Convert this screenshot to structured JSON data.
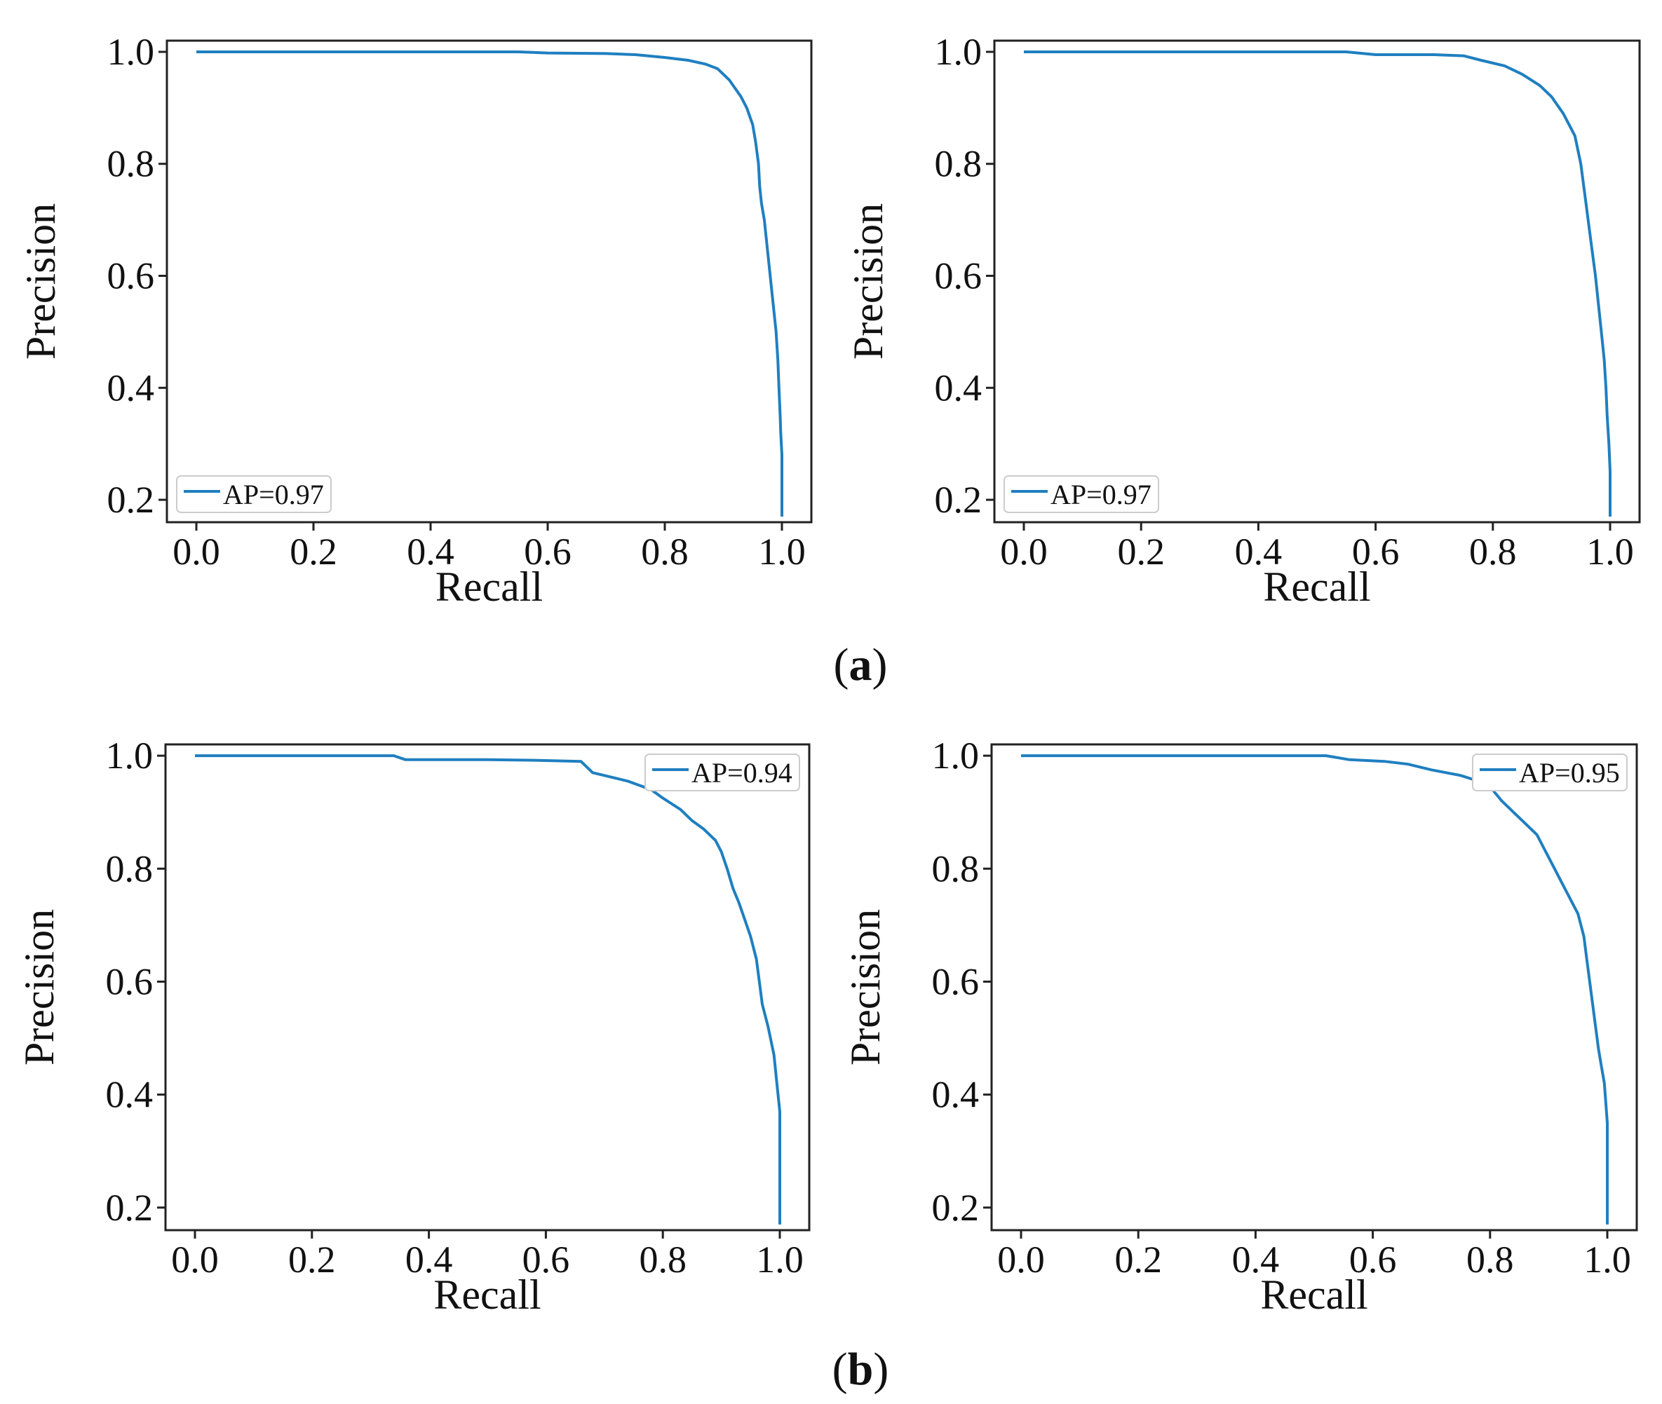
{
  "colors": {
    "curve": "#1f7fc0"
  },
  "captions": [
    {
      "letter": "a"
    },
    {
      "letter": "b"
    }
  ],
  "chart_data": [
    {
      "type": "line",
      "xlabel": "Recall",
      "ylabel": "Precision",
      "xlim": [
        0.0,
        1.0
      ],
      "ylim": [
        0.16,
        1.02
      ],
      "xticks": [
        "0.0",
        "0.2",
        "0.4",
        "0.6",
        "0.8",
        "1.0"
      ],
      "yticks": [
        "0.2",
        "0.4",
        "0.6",
        "0.8",
        "1.0"
      ],
      "legend": "lower-left",
      "grid": false,
      "series": [
        {
          "name": "AP=0.97",
          "x": [
            0.0,
            0.55,
            0.6,
            0.7,
            0.75,
            0.8,
            0.84,
            0.87,
            0.89,
            0.9,
            0.91,
            0.92,
            0.93,
            0.94,
            0.95,
            0.955,
            0.96,
            0.962,
            0.965,
            0.97,
            0.975,
            0.98,
            0.985,
            0.99,
            0.993,
            0.995,
            0.997,
            0.998,
            1.0,
            1.0
          ],
          "y": [
            1.0,
            1.0,
            0.998,
            0.997,
            0.995,
            0.99,
            0.985,
            0.978,
            0.97,
            0.96,
            0.95,
            0.935,
            0.92,
            0.9,
            0.87,
            0.84,
            0.8,
            0.76,
            0.73,
            0.7,
            0.65,
            0.6,
            0.55,
            0.5,
            0.45,
            0.4,
            0.35,
            0.32,
            0.28,
            0.17
          ]
        }
      ]
    },
    {
      "type": "line",
      "xlabel": "Recall",
      "ylabel": "Precision",
      "xlim": [
        0.0,
        1.0
      ],
      "ylim": [
        0.16,
        1.02
      ],
      "xticks": [
        "0.0",
        "0.2",
        "0.4",
        "0.6",
        "0.8",
        "1.0"
      ],
      "yticks": [
        "0.2",
        "0.4",
        "0.6",
        "0.8",
        "1.0"
      ],
      "legend": "lower-left",
      "grid": false,
      "series": [
        {
          "name": "AP=0.97",
          "x": [
            0.0,
            0.55,
            0.6,
            0.7,
            0.75,
            0.78,
            0.82,
            0.85,
            0.88,
            0.9,
            0.92,
            0.93,
            0.94,
            0.95,
            0.955,
            0.96,
            0.965,
            0.97,
            0.975,
            0.98,
            0.985,
            0.99,
            0.993,
            0.995,
            0.998,
            1.0,
            1.0
          ],
          "y": [
            1.0,
            1.0,
            0.995,
            0.995,
            0.993,
            0.985,
            0.975,
            0.96,
            0.94,
            0.92,
            0.89,
            0.87,
            0.85,
            0.8,
            0.76,
            0.72,
            0.68,
            0.64,
            0.6,
            0.55,
            0.5,
            0.45,
            0.4,
            0.35,
            0.3,
            0.25,
            0.17
          ]
        }
      ]
    },
    {
      "type": "line",
      "xlabel": "Recall",
      "ylabel": "Precision",
      "xlim": [
        0.0,
        1.0
      ],
      "ylim": [
        0.16,
        1.02
      ],
      "xticks": [
        "0.0",
        "0.2",
        "0.4",
        "0.6",
        "0.8",
        "1.0"
      ],
      "yticks": [
        "0.2",
        "0.4",
        "0.6",
        "0.8",
        "1.0"
      ],
      "legend": "upper-right",
      "grid": false,
      "series": [
        {
          "name": "AP=0.94",
          "x": [
            0.0,
            0.34,
            0.36,
            0.5,
            0.58,
            0.66,
            0.68,
            0.7,
            0.72,
            0.74,
            0.78,
            0.8,
            0.83,
            0.85,
            0.87,
            0.89,
            0.9,
            0.91,
            0.92,
            0.93,
            0.94,
            0.95,
            0.96,
            0.965,
            0.97,
            0.98,
            0.99,
            0.995,
            1.0,
            1.0
          ],
          "y": [
            1.0,
            1.0,
            0.993,
            0.993,
            0.992,
            0.99,
            0.97,
            0.965,
            0.96,
            0.955,
            0.94,
            0.925,
            0.905,
            0.885,
            0.87,
            0.85,
            0.83,
            0.8,
            0.765,
            0.74,
            0.71,
            0.68,
            0.64,
            0.6,
            0.56,
            0.52,
            0.47,
            0.42,
            0.37,
            0.17
          ]
        }
      ]
    },
    {
      "type": "line",
      "xlabel": "Recall",
      "ylabel": "Precision",
      "xlim": [
        0.0,
        1.0
      ],
      "ylim": [
        0.16,
        1.02
      ],
      "xticks": [
        "0.0",
        "0.2",
        "0.4",
        "0.6",
        "0.8",
        "1.0"
      ],
      "yticks": [
        "0.2",
        "0.4",
        "0.6",
        "0.8",
        "1.0"
      ],
      "legend": "upper-right",
      "grid": false,
      "series": [
        {
          "name": "AP=0.95",
          "x": [
            0.0,
            0.52,
            0.56,
            0.62,
            0.66,
            0.7,
            0.75,
            0.78,
            0.8,
            0.82,
            0.84,
            0.86,
            0.88,
            0.89,
            0.9,
            0.91,
            0.92,
            0.93,
            0.94,
            0.95,
            0.96,
            0.965,
            0.97,
            0.975,
            0.98,
            0.985,
            0.99,
            0.995,
            1.0,
            1.0
          ],
          "y": [
            1.0,
            1.0,
            0.993,
            0.99,
            0.985,
            0.975,
            0.965,
            0.955,
            0.945,
            0.92,
            0.9,
            0.88,
            0.86,
            0.84,
            0.82,
            0.8,
            0.78,
            0.76,
            0.74,
            0.72,
            0.68,
            0.64,
            0.6,
            0.56,
            0.52,
            0.48,
            0.45,
            0.42,
            0.35,
            0.17
          ]
        }
      ]
    }
  ]
}
